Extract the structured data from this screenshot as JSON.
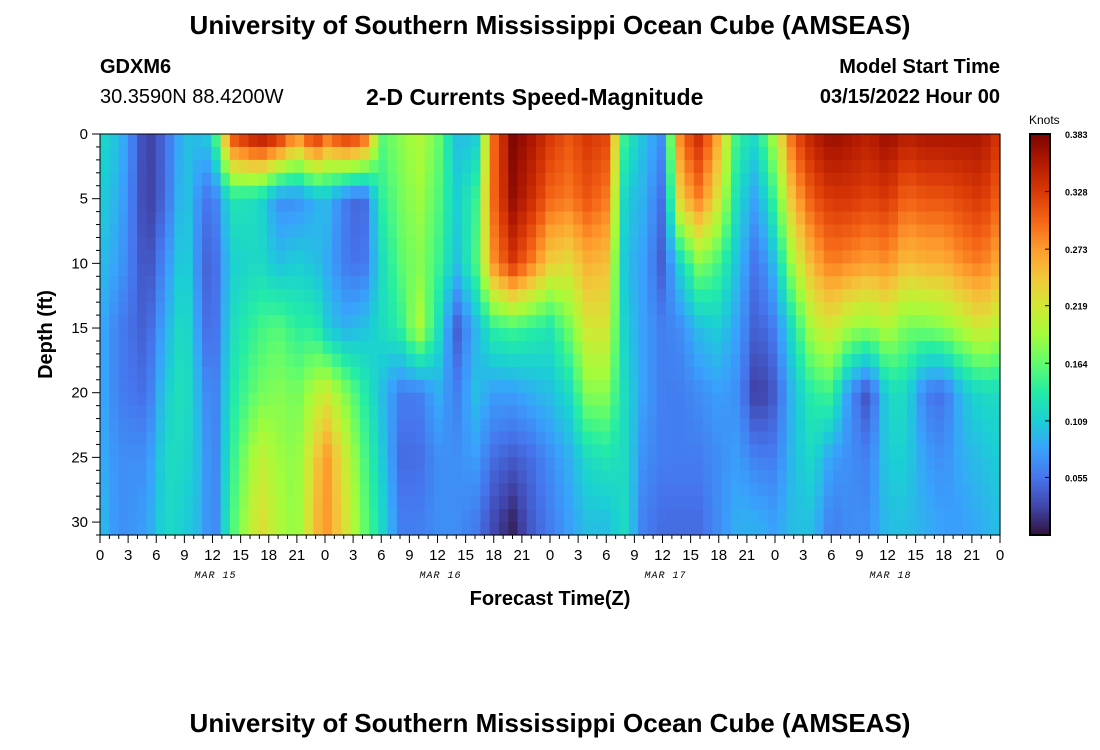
{
  "header": {
    "title": "University of Southern Mississippi Ocean Cube (AMSEAS)",
    "station": "GDXM6",
    "coordinates": "30.3590N  88.4200W",
    "subtitle": "2-D Currents Speed-Magnitude",
    "model_start_label": "Model Start Time",
    "model_start_value": "03/15/2022 Hour 00"
  },
  "footer": {
    "title": "University of Southern Mississippi Ocean Cube (AMSEAS)"
  },
  "chart_data": {
    "type": "heatmap",
    "title": "2-D Currents Speed-Magnitude",
    "xlabel": "Forecast Time(Z)",
    "ylabel": "Depth (ft)",
    "x_range": [
      0,
      96
    ],
    "y_range": [
      0,
      31
    ],
    "y_ticks": [
      0,
      5,
      10,
      15,
      20,
      25,
      30
    ],
    "x_tick_hours": [
      0,
      3,
      6,
      9,
      12,
      15,
      18,
      21,
      24,
      27,
      30,
      33,
      36,
      39,
      42,
      45,
      48,
      51,
      54,
      57,
      60,
      63,
      66,
      69,
      72,
      75,
      78,
      81,
      84,
      87,
      90,
      93,
      96
    ],
    "x_tick_labels": [
      "0",
      "3",
      "6",
      "9",
      "12",
      "15",
      "18",
      "21",
      "0",
      "3",
      "6",
      "9",
      "12",
      "15",
      "18",
      "21",
      "0",
      "3",
      "6",
      "9",
      "12",
      "15",
      "18",
      "21",
      "0",
      "3",
      "6",
      "9",
      "12",
      "15",
      "18",
      "21",
      "0"
    ],
    "date_labels": [
      {
        "hour": 12,
        "label": "MAR 15"
      },
      {
        "hour": 36,
        "label": "MAR 16"
      },
      {
        "hour": 60,
        "label": "MAR 17"
      },
      {
        "hour": 84,
        "label": "MAR 18"
      }
    ],
    "colorbar": {
      "units": "Knots",
      "min": 0.0,
      "max": 0.383,
      "tick_values": [
        0.055,
        0.109,
        0.164,
        0.219,
        0.273,
        0.328,
        0.383
      ],
      "tick_labels": [
        "0.055",
        "0.109",
        "0.164",
        "0.219",
        "0.273",
        "0.328",
        "0.383"
      ]
    },
    "depth_levels": [
      0,
      5,
      10,
      15,
      20,
      25,
      30
    ],
    "speed_profiles": [
      {
        "hour": 0,
        "values": [
          0.12,
          0.11,
          0.1,
          0.09,
          0.09,
          0.09,
          0.1
        ]
      },
      {
        "hour": 2,
        "values": [
          0.1,
          0.09,
          0.08,
          0.06,
          0.06,
          0.07,
          0.07
        ]
      },
      {
        "hour": 5,
        "values": [
          0.02,
          0.02,
          0.03,
          0.04,
          0.05,
          0.07,
          0.08
        ]
      },
      {
        "hour": 7,
        "values": [
          0.05,
          0.05,
          0.07,
          0.09,
          0.11,
          0.12,
          0.12
        ]
      },
      {
        "hour": 9,
        "values": [
          0.1,
          0.11,
          0.12,
          0.13,
          0.13,
          0.12,
          0.11
        ]
      },
      {
        "hour": 11,
        "values": [
          0.1,
          0.06,
          0.05,
          0.06,
          0.08,
          0.09,
          0.09
        ]
      },
      {
        "hour": 12,
        "values": [
          0.12,
          0.05,
          0.04,
          0.04,
          0.05,
          0.05,
          0.05
        ]
      },
      {
        "hour": 14,
        "values": [
          0.32,
          0.13,
          0.11,
          0.12,
          0.13,
          0.14,
          0.15
        ]
      },
      {
        "hour": 17,
        "values": [
          0.37,
          0.12,
          0.12,
          0.15,
          0.17,
          0.21,
          0.23
        ]
      },
      {
        "hour": 19,
        "values": [
          0.35,
          0.07,
          0.1,
          0.16,
          0.18,
          0.19,
          0.2
        ]
      },
      {
        "hour": 21,
        "values": [
          0.28,
          0.07,
          0.11,
          0.14,
          0.17,
          0.18,
          0.18
        ]
      },
      {
        "hour": 23,
        "values": [
          0.35,
          0.09,
          0.1,
          0.14,
          0.2,
          0.24,
          0.25
        ]
      },
      {
        "hour": 24,
        "values": [
          0.3,
          0.1,
          0.09,
          0.11,
          0.22,
          0.28,
          0.28
        ]
      },
      {
        "hour": 26,
        "values": [
          0.34,
          0.06,
          0.06,
          0.09,
          0.18,
          0.22,
          0.23
        ]
      },
      {
        "hour": 28,
        "values": [
          0.33,
          0.04,
          0.05,
          0.1,
          0.14,
          0.16,
          0.17
        ]
      },
      {
        "hour": 30,
        "values": [
          0.16,
          0.14,
          0.12,
          0.12,
          0.1,
          0.11,
          0.12
        ]
      },
      {
        "hour": 32,
        "values": [
          0.18,
          0.17,
          0.16,
          0.14,
          0.06,
          0.05,
          0.06
        ]
      },
      {
        "hour": 34,
        "values": [
          0.2,
          0.19,
          0.18,
          0.2,
          0.06,
          0.05,
          0.06
        ]
      },
      {
        "hour": 36,
        "values": [
          0.17,
          0.16,
          0.15,
          0.13,
          0.09,
          0.07,
          0.07
        ]
      },
      {
        "hour": 38,
        "values": [
          0.1,
          0.11,
          0.1,
          0.04,
          0.06,
          0.07,
          0.07
        ]
      },
      {
        "hour": 40,
        "values": [
          0.1,
          0.14,
          0.15,
          0.09,
          0.1,
          0.08,
          0.06
        ]
      },
      {
        "hour": 42,
        "values": [
          0.3,
          0.3,
          0.28,
          0.14,
          0.08,
          0.05,
          0.03
        ]
      },
      {
        "hour": 44,
        "values": [
          0.38,
          0.37,
          0.33,
          0.15,
          0.08,
          0.04,
          0.01
        ]
      },
      {
        "hour": 46,
        "values": [
          0.36,
          0.34,
          0.29,
          0.14,
          0.09,
          0.05,
          0.04
        ]
      },
      {
        "hour": 48,
        "values": [
          0.33,
          0.3,
          0.24,
          0.13,
          0.1,
          0.07,
          0.06
        ]
      },
      {
        "hour": 50,
        "values": [
          0.31,
          0.29,
          0.23,
          0.17,
          0.12,
          0.09,
          0.08
        ]
      },
      {
        "hour": 52,
        "values": [
          0.33,
          0.31,
          0.26,
          0.22,
          0.18,
          0.12,
          0.1
        ]
      },
      {
        "hour": 54,
        "values": [
          0.32,
          0.29,
          0.25,
          0.22,
          0.18,
          0.13,
          0.1
        ]
      },
      {
        "hour": 56,
        "values": [
          0.14,
          0.11,
          0.1,
          0.11,
          0.12,
          0.12,
          0.12
        ]
      },
      {
        "hour": 58,
        "values": [
          0.1,
          0.09,
          0.08,
          0.08,
          0.08,
          0.07,
          0.06
        ]
      },
      {
        "hour": 60,
        "values": [
          0.07,
          0.05,
          0.04,
          0.06,
          0.06,
          0.06,
          0.05
        ]
      },
      {
        "hour": 62,
        "values": [
          0.3,
          0.25,
          0.12,
          0.07,
          0.06,
          0.06,
          0.05
        ]
      },
      {
        "hour": 64,
        "values": [
          0.34,
          0.29,
          0.18,
          0.1,
          0.07,
          0.06,
          0.05
        ]
      },
      {
        "hour": 66,
        "values": [
          0.26,
          0.22,
          0.15,
          0.11,
          0.08,
          0.07,
          0.07
        ]
      },
      {
        "hour": 68,
        "values": [
          0.14,
          0.12,
          0.1,
          0.08,
          0.07,
          0.08,
          0.09
        ]
      },
      {
        "hour": 70,
        "values": [
          0.12,
          0.08,
          0.05,
          0.04,
          0.02,
          0.06,
          0.09
        ]
      },
      {
        "hour": 72,
        "values": [
          0.2,
          0.15,
          0.1,
          0.06,
          0.04,
          0.06,
          0.08
        ]
      },
      {
        "hour": 74,
        "values": [
          0.31,
          0.26,
          0.2,
          0.13,
          0.1,
          0.1,
          0.1
        ]
      },
      {
        "hour": 76,
        "values": [
          0.35,
          0.31,
          0.26,
          0.2,
          0.14,
          0.12,
          0.1
        ]
      },
      {
        "hour": 78,
        "values": [
          0.37,
          0.33,
          0.29,
          0.22,
          0.15,
          0.08,
          0.06
        ]
      },
      {
        "hour": 80,
        "values": [
          0.36,
          0.33,
          0.28,
          0.19,
          0.07,
          0.07,
          0.07
        ]
      },
      {
        "hour": 82,
        "values": [
          0.35,
          0.32,
          0.27,
          0.18,
          0.03,
          0.06,
          0.07
        ]
      },
      {
        "hour": 84,
        "values": [
          0.37,
          0.33,
          0.28,
          0.2,
          0.12,
          0.11,
          0.1
        ]
      },
      {
        "hour": 86,
        "values": [
          0.35,
          0.3,
          0.25,
          0.17,
          0.12,
          0.11,
          0.1
        ]
      },
      {
        "hour": 88,
        "values": [
          0.36,
          0.31,
          0.26,
          0.17,
          0.06,
          0.08,
          0.09
        ]
      },
      {
        "hour": 90,
        "values": [
          0.36,
          0.31,
          0.26,
          0.18,
          0.05,
          0.07,
          0.08
        ]
      },
      {
        "hour": 92,
        "values": [
          0.36,
          0.32,
          0.28,
          0.2,
          0.1,
          0.09,
          0.08
        ]
      },
      {
        "hour": 94,
        "values": [
          0.36,
          0.33,
          0.29,
          0.22,
          0.12,
          0.1,
          0.09
        ]
      },
      {
        "hour": 96,
        "values": [
          0.33,
          0.3,
          0.26,
          0.2,
          0.12,
          0.11,
          0.1
        ]
      }
    ]
  },
  "colors": {
    "background": "#ffffff",
    "axis": "#000000",
    "colormap": [
      "#30123b",
      "#4145ab",
      "#4675ed",
      "#39a2fc",
      "#1bcfd4",
      "#24eca6",
      "#61fc6c",
      "#a4fc3b",
      "#d1e834",
      "#f3c63a",
      "#fe9b2d",
      "#f36315",
      "#d93806",
      "#b11901",
      "#7a0402"
    ]
  }
}
